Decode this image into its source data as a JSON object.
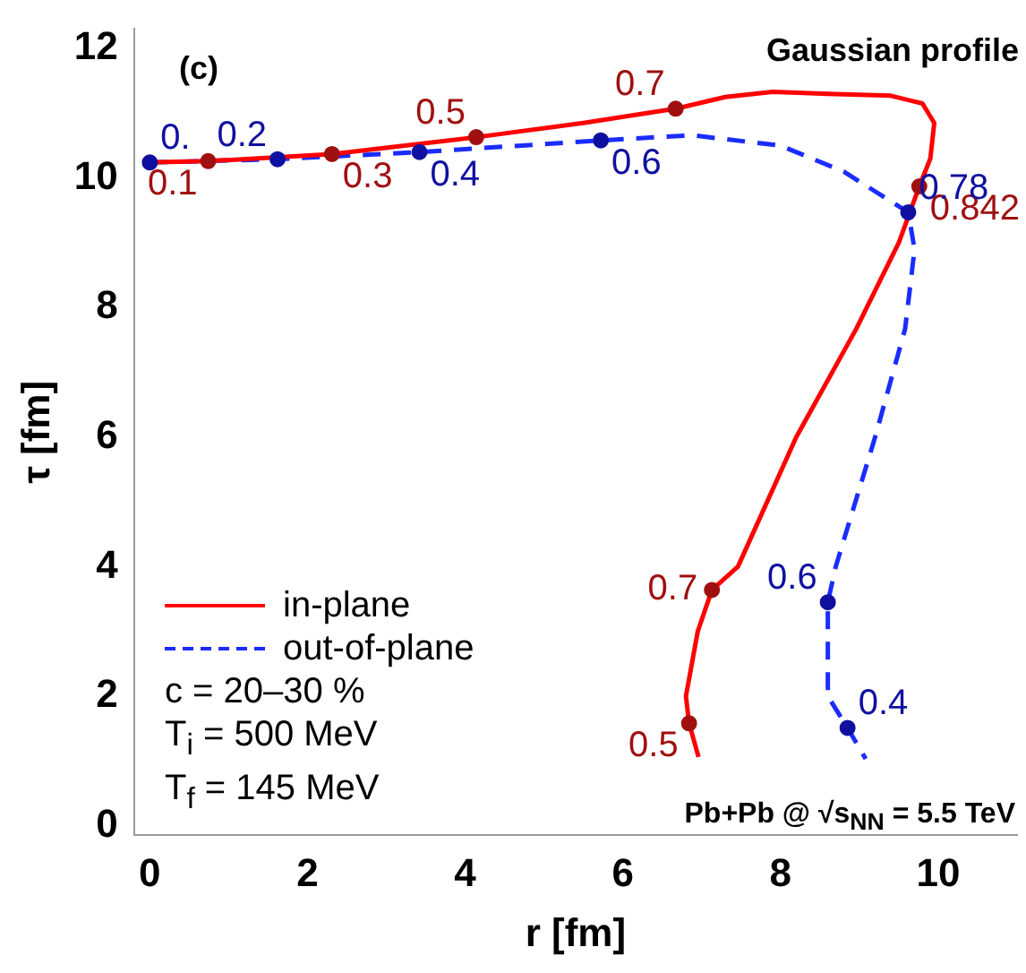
{
  "chart_data": {
    "type": "line",
    "xlabel": "r [fm]",
    "ylabel": "τ [fm]",
    "xlim": [
      -0.2,
      11
    ],
    "ylim": [
      -0.15,
      12.3
    ],
    "xticks": [
      0,
      2,
      4,
      6,
      8,
      10
    ],
    "yticks": [
      0,
      2,
      4,
      6,
      8,
      10,
      12
    ],
    "grid": false,
    "legend": "bottom left",
    "annotations": [
      "(c)",
      "Gaussian profile",
      "c  = 20–30 %",
      "T$_{i}$ = 500 MeV",
      "T$_{f}$ = 145 MeV",
      "Pb+Pb @ √s$_{NN}$ = 5.5 TeV",
      {
        "text": "0.1",
        "x": 0.74,
        "y": 10.26
      },
      {
        "text": "0.3",
        "x": 2.31,
        "y": 10.37
      },
      {
        "text": "0.5",
        "x": 4.14,
        "y": 10.63
      },
      {
        "text": "0.7",
        "x": 6.67,
        "y": 11.07
      },
      {
        "text": "0.842",
        "x": 9.76,
        "y": 9.87
      },
      {
        "text": "0.7",
        "x": 7.13,
        "y": 3.64
      },
      {
        "text": "0.5",
        "x": 6.84,
        "y": 1.58
      },
      {
        "text": "0.",
        "x": 0,
        "y": 10.24
      },
      {
        "text": "0.2",
        "x": 1.62,
        "y": 10.29
      },
      {
        "text": "0.4",
        "x": 3.42,
        "y": 10.4
      },
      {
        "text": "0.6",
        "x": 5.72,
        "y": 10.58
      },
      {
        "text": "0.78",
        "x": 9.62,
        "y": 9.47
      },
      {
        "text": "0.6",
        "x": 8.6,
        "y": 3.45
      },
      {
        "text": "0.4",
        "x": 8.85,
        "y": 1.51
      }
    ],
    "series": [
      {
        "name": "in-plane",
        "type": "line",
        "color": "#ff0000",
        "line_style": "solid",
        "marker": "none",
        "x": [
          0,
          0.74,
          2.31,
          4.14,
          5.5,
          6.67,
          7.3,
          7.9,
          8.6,
          9.4,
          9.8,
          9.95,
          9.9,
          9.76,
          9.5,
          8.96,
          8.2,
          7.46,
          7.13,
          6.95,
          6.8,
          6.84,
          6.96
        ],
        "values": [
          10.24,
          10.26,
          10.37,
          10.63,
          10.85,
          11.07,
          11.25,
          11.33,
          11.3,
          11.27,
          11.15,
          10.85,
          10.3,
          9.87,
          9,
          7.67,
          6,
          4,
          3.64,
          3,
          2,
          1.58,
          1.06
        ]
      },
      {
        "name": "out-of-plane",
        "type": "line",
        "color": "#1a2cff",
        "line_style": "dashed",
        "marker": "none",
        "x": [
          0,
          1.62,
          3.42,
          5.72,
          6.88,
          8,
          8.8,
          9.62,
          9.7,
          9.58,
          9.2,
          8.7,
          8.6,
          8.6,
          8.85,
          9.08
        ],
        "values": [
          10.24,
          10.29,
          10.4,
          10.58,
          10.66,
          10.5,
          10.1,
          9.47,
          8.9,
          7.67,
          6,
          4,
          3.45,
          2,
          1.51,
          1.03
        ]
      },
      {
        "type": "scatter",
        "color": "#a01010",
        "marker": "circle",
        "x": [
          0.74,
          2.31,
          4.14,
          6.67,
          9.76,
          7.13,
          6.84
        ],
        "values": [
          10.26,
          10.37,
          10.63,
          11.07,
          9.87,
          3.64,
          1.58
        ]
      },
      {
        "type": "scatter",
        "color": "#1010a0",
        "marker": "circle",
        "x": [
          0,
          1.62,
          3.42,
          5.72,
          9.62,
          8.6,
          8.85
        ],
        "values": [
          10.24,
          10.29,
          10.4,
          10.58,
          9.47,
          3.45,
          1.51
        ]
      }
    ]
  }
}
